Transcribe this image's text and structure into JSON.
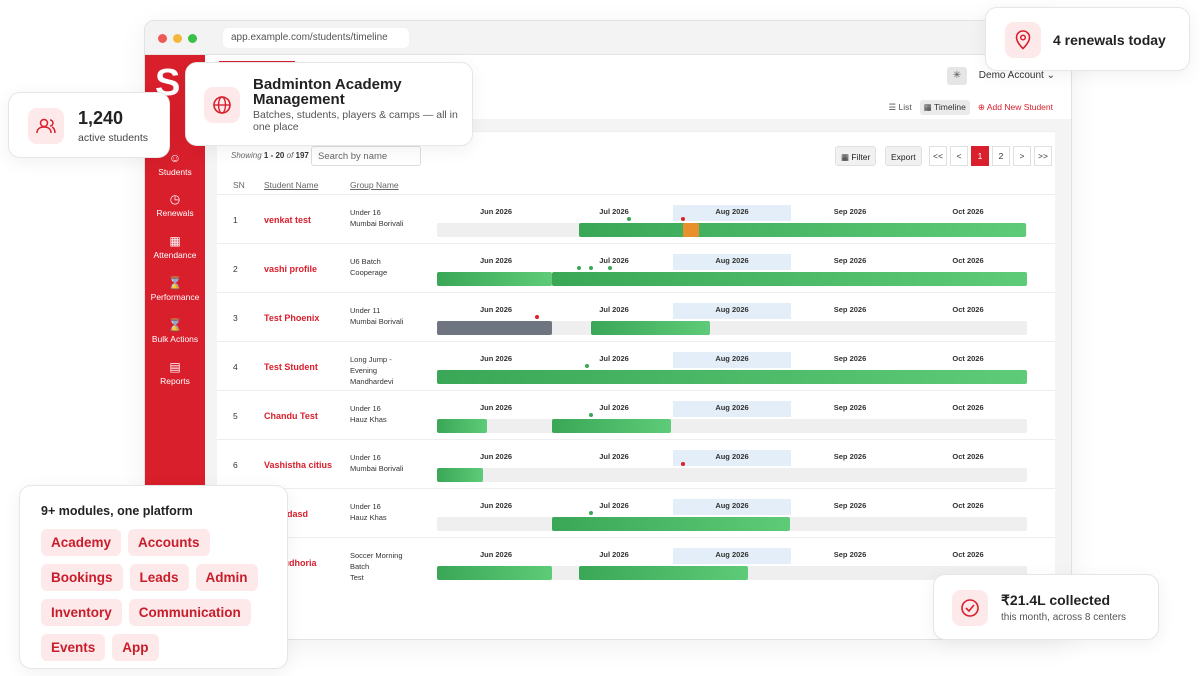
{
  "browser": {
    "url": "app.example.com/students/timeline"
  },
  "account": {
    "label": "Demo Account"
  },
  "views": {
    "list": "List",
    "timeline": "Timeline",
    "add": "Add New Student"
  },
  "sidebar": {
    "items": [
      {
        "label": "Students",
        "icon": "users-icon"
      },
      {
        "label": "Renewals",
        "icon": "clock-icon"
      },
      {
        "label": "Attendance",
        "icon": "calendar-icon"
      },
      {
        "label": "Performance",
        "icon": "hourglass-icon"
      },
      {
        "label": "Bulk Actions",
        "icon": "hourglass-icon"
      },
      {
        "label": "Reports",
        "icon": "report-icon"
      }
    ]
  },
  "table": {
    "showing_prefix": "Showing",
    "showing_range": "1 - 20",
    "showing_of": "of",
    "showing_total": "197",
    "search_placeholder": "Search by name",
    "filter_label": "Filter",
    "export_label": "Export",
    "pagination": [
      "<<",
      "<",
      "1",
      "2",
      ">",
      ">>"
    ],
    "headers": {
      "sn": "SN",
      "name": "Student Name",
      "group": "Group Name"
    },
    "months": [
      "Jun 2026",
      "Jul 2026",
      "Aug 2026",
      "Sep 2026",
      "Oct 2026"
    ],
    "rows": [
      {
        "sn": "1",
        "name": "venkat test",
        "group": [
          "Under 16",
          "Mumbai Borivali"
        ]
      },
      {
        "sn": "2",
        "name": "vashi profile",
        "group": [
          "U6 Batch",
          "Cooperage"
        ]
      },
      {
        "sn": "3",
        "name": "Test Phoenix",
        "group": [
          "Under 11",
          "Mumbai Borivali"
        ]
      },
      {
        "sn": "4",
        "name": "Test Student",
        "group": [
          "Long Jump -",
          "Evening",
          "Mandhardevi"
        ]
      },
      {
        "sn": "5",
        "name": "Chandu Test",
        "group": [
          "Under 16",
          "Hauz Khas"
        ]
      },
      {
        "sn": "6",
        "name": "Vashistha citius",
        "group": [
          "Under 16",
          "Mumbai Borivali"
        ]
      },
      {
        "sn": "7",
        "name": "sd asdasd",
        "group": [
          "Under 16",
          "Hauz Khas"
        ]
      },
      {
        "sn": "8",
        "name": "an Dudhoria",
        "group": [
          "Soccer Morning",
          "Batch",
          "Test"
        ]
      }
    ]
  },
  "cards": {
    "academy": {
      "title": "Badminton Academy Management",
      "subtitle": "Batches, students, players & camps — all in one place"
    },
    "students": {
      "value": "1,240",
      "label": "active students"
    },
    "renewals": {
      "label": "4 renewals today"
    },
    "collected": {
      "value": "₹21.4L collected",
      "label": "this month, across 8 centers"
    },
    "modules": {
      "title": "9+ modules, one platform",
      "items": [
        "Academy",
        "Accounts",
        "Bookings",
        "Leads",
        "Admin",
        "Inventory",
        "Communication",
        "Events",
        "App"
      ]
    }
  },
  "colors": {
    "brand": "#d91f2c",
    "bar": "#4cbb6a"
  }
}
